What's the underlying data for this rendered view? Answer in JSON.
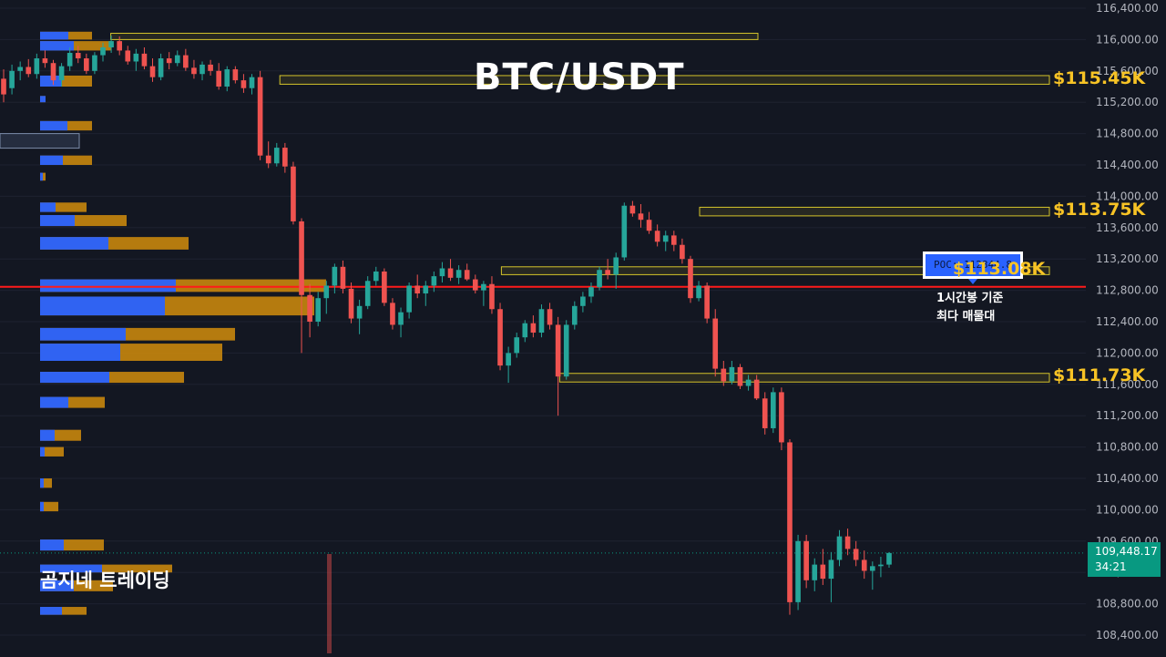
{
  "chart_data": {
    "type": "candlestick",
    "title": "BTC/USDT",
    "y_axis": {
      "range": [
        108200,
        116600
      ],
      "tick_labels": [
        "116,400.00",
        "116,000.00",
        "115,600.00",
        "115,200.00",
        "114,800.00",
        "114,400.00",
        "114,000.00",
        "113,600.00",
        "113,200.00",
        "112,800.00",
        "112,400.00",
        "112,000.00",
        "111,600.00",
        "111,200.00",
        "110,800.00",
        "110,400.00",
        "110,000.00",
        "109,600.00",
        "109,200.00",
        "108,800.00",
        "108,400.00"
      ],
      "position": "right"
    },
    "grid": true,
    "candles_ohlc": [
      [
        115500,
        115620,
        115200,
        115300
      ],
      [
        115380,
        115680,
        115300,
        115600
      ],
      [
        115600,
        115720,
        115480,
        115650
      ],
      [
        115650,
        115750,
        115520,
        115560
      ],
      [
        115560,
        115820,
        115500,
        115760
      ],
      [
        115760,
        115860,
        115640,
        115700
      ],
      [
        115700,
        115740,
        115420,
        115480
      ],
      [
        115480,
        115700,
        115400,
        115660
      ],
      [
        115660,
        115900,
        115600,
        115830
      ],
      [
        115830,
        115920,
        115700,
        115760
      ],
      [
        115760,
        115820,
        115560,
        115600
      ],
      [
        115600,
        115840,
        115560,
        115800
      ],
      [
        115800,
        115960,
        115720,
        115900
      ],
      [
        115900,
        116050,
        115830,
        115980
      ],
      [
        115980,
        116040,
        115800,
        115860
      ],
      [
        115860,
        115920,
        115680,
        115720
      ],
      [
        115720,
        115880,
        115600,
        115820
      ],
      [
        115820,
        115900,
        115620,
        115660
      ],
      [
        115660,
        115760,
        115460,
        115520
      ],
      [
        115520,
        115820,
        115480,
        115760
      ],
      [
        115760,
        115840,
        115620,
        115700
      ],
      [
        115700,
        115860,
        115660,
        115800
      ],
      [
        115800,
        115880,
        115600,
        115640
      ],
      [
        115640,
        115740,
        115500,
        115560
      ],
      [
        115560,
        115720,
        115480,
        115680
      ],
      [
        115680,
        115740,
        115540,
        115600
      ],
      [
        115600,
        115700,
        115360,
        115400
      ],
      [
        115400,
        115660,
        115340,
        115620
      ],
      [
        115620,
        115660,
        115440,
        115480
      ],
      [
        115480,
        115560,
        115320,
        115380
      ],
      [
        115380,
        115560,
        115300,
        115520
      ],
      [
        115520,
        115600,
        114460,
        114520
      ],
      [
        114520,
        114700,
        114360,
        114420
      ],
      [
        114420,
        114680,
        114380,
        114620
      ],
      [
        114620,
        114680,
        114300,
        114380
      ],
      [
        114380,
        114440,
        113640,
        113680
      ],
      [
        113680,
        113720,
        112000,
        112740
      ],
      [
        112740,
        112880,
        112200,
        112400
      ],
      [
        112400,
        112780,
        112340,
        112700
      ],
      [
        112700,
        112920,
        112500,
        112860
      ],
      [
        112860,
        113140,
        112760,
        113100
      ],
      [
        113100,
        113180,
        112760,
        112820
      ],
      [
        112820,
        112900,
        112380,
        112440
      ],
      [
        112440,
        112680,
        112240,
        112600
      ],
      [
        112600,
        112980,
        112560,
        112920
      ],
      [
        112920,
        113100,
        112860,
        113040
      ],
      [
        113040,
        113080,
        112600,
        112640
      ],
      [
        112640,
        112700,
        112300,
        112360
      ],
      [
        112360,
        112580,
        112200,
        112520
      ],
      [
        112520,
        112900,
        112440,
        112860
      ],
      [
        112860,
        113000,
        112700,
        112760
      ],
      [
        112760,
        112920,
        112600,
        112860
      ],
      [
        112860,
        113040,
        112780,
        112980
      ],
      [
        112980,
        113160,
        112900,
        113080
      ],
      [
        113080,
        113200,
        112920,
        112960
      ],
      [
        112960,
        113120,
        112880,
        113060
      ],
      [
        113060,
        113140,
        112920,
        112940
      ],
      [
        112940,
        113000,
        112760,
        112800
      ],
      [
        112800,
        112920,
        112600,
        112880
      ],
      [
        112880,
        112980,
        112500,
        112560
      ],
      [
        112560,
        112640,
        111780,
        111840
      ],
      [
        111840,
        112080,
        111620,
        112000
      ],
      [
        112000,
        112260,
        111940,
        112200
      ],
      [
        112200,
        112420,
        112140,
        112380
      ],
      [
        112380,
        112480,
        112200,
        112260
      ],
      [
        112260,
        112620,
        112200,
        112560
      ],
      [
        112560,
        112640,
        112300,
        112360
      ],
      [
        112360,
        112460,
        111200,
        111700
      ],
      [
        111700,
        112420,
        111660,
        112360
      ],
      [
        112360,
        112660,
        112300,
        112600
      ],
      [
        112600,
        112780,
        112520,
        112720
      ],
      [
        112720,
        112900,
        112640,
        112840
      ],
      [
        112840,
        113100,
        112800,
        113060
      ],
      [
        113060,
        113200,
        112940,
        113000
      ],
      [
        113000,
        113280,
        112820,
        113220
      ],
      [
        113220,
        113920,
        113180,
        113880
      ],
      [
        113880,
        113940,
        113740,
        113780
      ],
      [
        113780,
        113900,
        113600,
        113700
      ],
      [
        113700,
        113800,
        113520,
        113560
      ],
      [
        113560,
        113640,
        113360,
        113420
      ],
      [
        113420,
        113560,
        113300,
        113500
      ],
      [
        113500,
        113560,
        113300,
        113380
      ],
      [
        113380,
        113460,
        113140,
        113200
      ],
      [
        113200,
        113240,
        112640,
        112700
      ],
      [
        112700,
        112920,
        112660,
        112860
      ],
      [
        112860,
        112900,
        112380,
        112440
      ],
      [
        112440,
        112560,
        111700,
        111800
      ],
      [
        111800,
        111900,
        111580,
        111640
      ],
      [
        111640,
        111900,
        111600,
        111820
      ],
      [
        111820,
        111860,
        111540,
        111580
      ],
      [
        111580,
        111720,
        111520,
        111660
      ],
      [
        111660,
        111720,
        111400,
        111420
      ],
      [
        111420,
        111500,
        110960,
        111040
      ],
      [
        111040,
        111560,
        110980,
        111500
      ],
      [
        111500,
        111560,
        110760,
        110860
      ],
      [
        110860,
        110900,
        108660,
        108820
      ],
      [
        108820,
        109680,
        108720,
        109600
      ],
      [
        109600,
        109680,
        109000,
        109100
      ],
      [
        109100,
        109380,
        108960,
        109300
      ],
      [
        109300,
        109500,
        109040,
        109120
      ],
      [
        109120,
        109460,
        108820,
        109360
      ],
      [
        109360,
        109740,
        109280,
        109660
      ],
      [
        109660,
        109760,
        109420,
        109500
      ],
      [
        109500,
        109600,
        109280,
        109360
      ],
      [
        109360,
        109480,
        109120,
        109220
      ],
      [
        109220,
        109340,
        108980,
        109280
      ],
      [
        109280,
        109400,
        109140,
        109300
      ],
      [
        109300,
        109460,
        109260,
        109448
      ]
    ],
    "volume_profile_blue": [
      [
        116000,
        116100,
        31
      ],
      [
        115860,
        115980,
        37
      ],
      [
        115400,
        115540,
        24
      ],
      [
        115200,
        115280,
        6
      ],
      [
        114840,
        114960,
        30
      ],
      [
        114400,
        114520,
        25
      ],
      [
        114200,
        114300,
        3
      ],
      [
        113800,
        113920,
        17
      ],
      [
        113620,
        113760,
        38
      ],
      [
        113320,
        113480,
        75
      ],
      [
        112780,
        112940,
        149
      ],
      [
        112480,
        112720,
        137
      ],
      [
        112160,
        112320,
        94
      ],
      [
        111900,
        112120,
        88
      ],
      [
        111620,
        111760,
        76
      ],
      [
        111300,
        111440,
        31
      ],
      [
        110880,
        111020,
        16
      ],
      [
        110680,
        110800,
        5
      ],
      [
        110280,
        110400,
        4
      ],
      [
        109980,
        110100,
        4
      ],
      [
        109480,
        109620,
        26
      ],
      [
        109200,
        109300,
        68
      ],
      [
        108960,
        109100,
        37
      ],
      [
        108660,
        108760,
        24
      ]
    ],
    "volume_profile_total": [
      [
        116000,
        116100,
        57
      ],
      [
        115860,
        115980,
        78
      ],
      [
        115400,
        115540,
        57
      ],
      [
        115200,
        115280,
        6
      ],
      [
        114840,
        114960,
        57
      ],
      [
        114400,
        114520,
        57
      ],
      [
        114200,
        114300,
        6
      ],
      [
        113800,
        113920,
        51
      ],
      [
        113620,
        113760,
        95
      ],
      [
        113320,
        113480,
        163
      ],
      [
        112780,
        112940,
        314
      ],
      [
        112480,
        112720,
        301
      ],
      [
        112160,
        112320,
        214
      ],
      [
        111900,
        112120,
        200
      ],
      [
        111620,
        111760,
        158
      ],
      [
        111300,
        111440,
        71
      ],
      [
        110880,
        111020,
        45
      ],
      [
        110680,
        110800,
        26
      ],
      [
        110280,
        110400,
        13
      ],
      [
        109980,
        110100,
        20
      ],
      [
        109480,
        109620,
        70
      ],
      [
        109200,
        109300,
        145
      ],
      [
        108960,
        109100,
        80
      ],
      [
        108660,
        108760,
        51
      ]
    ],
    "zones": [
      {
        "y1": 116000,
        "y2": 116080,
        "x_from": 0.095,
        "x_to": 0.65
      },
      {
        "y1": 115430,
        "y2": 115540,
        "x_from": 0.24,
        "x_to": 0.9,
        "label": "$115.45K"
      },
      {
        "y1": 113750,
        "y2": 113860,
        "x_from": 0.6,
        "x_to": 0.9,
        "label": "$113.75K"
      },
      {
        "y1": 113000,
        "y2": 113100,
        "x_from": 0.43,
        "x_to": 0.9,
        "label": "$113.08K"
      },
      {
        "y1": 111630,
        "y2": 111740,
        "x_from": 0.48,
        "x_to": 0.9,
        "label": "$111.73K"
      }
    ],
    "poc": {
      "value": 112844.8,
      "label": "POC: 112844.8",
      "note_line1": "1시간봉 기준",
      "note_line2": "최다 매물대"
    },
    "last_price": {
      "value": 109448.17,
      "label": "109,448.17",
      "countdown": "34:21"
    },
    "colors": {
      "up": "#26a69a",
      "down": "#ef5350",
      "profile_blue": "#2962ff",
      "profile_orange": "#c8860d",
      "zone": "#d4c32a",
      "poc_line": "#ff1a1a"
    }
  },
  "watermark": "곰지네 트레이딩"
}
